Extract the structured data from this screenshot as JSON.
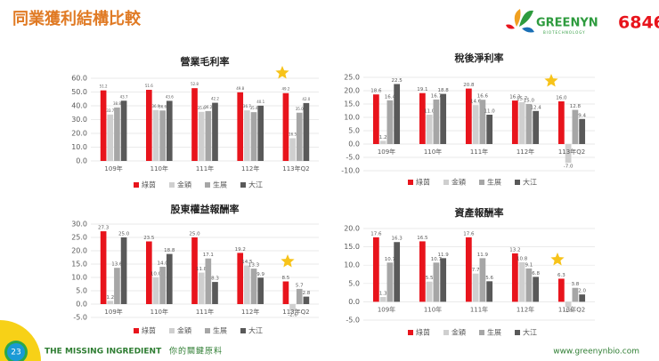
{
  "header": {
    "title": "同業獲利結構比較",
    "logo": "GREENYN",
    "logo_sub": "BIOTECHNOLOGY",
    "code": "6846"
  },
  "footer": {
    "page": "23",
    "slogan": "THE MISSING INGREDIENT",
    "slogan_zh": "你的關鍵原料",
    "url": "www.greenynbio.com"
  },
  "chart_data": [
    {
      "type": "bar",
      "title": "營業毛利率",
      "categories": [
        "109年",
        "110年",
        "111年",
        "112年",
        "113年Q2"
      ],
      "ylim": [
        0,
        60
      ],
      "yticks": [
        {
          "value": 0,
          "label": "0.0"
        },
        {
          "value": 10,
          "label": "10.0"
        },
        {
          "value": 20,
          "label": "20.0"
        },
        {
          "value": 30,
          "label": "30.0"
        },
        {
          "value": 40,
          "label": "40.0"
        },
        {
          "value": 50,
          "label": "50.0"
        },
        {
          "value": 60,
          "label": "60.0"
        }
      ],
      "grid": true,
      "legend": "bottom",
      "series": [
        {
          "name": "綠茵",
          "color": "#e8141c",
          "values": [
            51.2,
            51.6,
            52.8,
            49.8,
            49.2
          ],
          "value_labels": [
            "51.2",
            "51.6",
            "52.8",
            "49.8",
            "49.2"
          ]
        },
        {
          "name": "金穎",
          "color": "#cfcfcf",
          "values": [
            33.7,
            36.9,
            35.6,
            36.7,
            16.5
          ],
          "value_labels": [
            "33.7",
            "36.9",
            "35.6",
            "36.7",
            "16.5"
          ]
        },
        {
          "name": "生展",
          "color": "#a6a6a6",
          "values": [
            38.8,
            36.6,
            36.2,
            35.4,
            35.0
          ],
          "value_labels": [
            "38.8",
            "36.6",
            "36.2",
            "35.4",
            "35.0"
          ]
        },
        {
          "name": "大江",
          "color": "#595959",
          "values": [
            43.7,
            43.6,
            42.2,
            40.1,
            42.0
          ],
          "value_labels": [
            "43.7",
            "43.6",
            "42.2",
            "40.1",
            "42.0"
          ]
        }
      ]
    },
    {
      "type": "bar",
      "title": "稅後淨利率",
      "categories": [
        "109年",
        "110年",
        "111年",
        "112年",
        "113年Q2"
      ],
      "ylim": [
        -10,
        25
      ],
      "yticks": [
        {
          "value": -10,
          "label": "-10.0"
        },
        {
          "value": -5,
          "label": "-5.0"
        },
        {
          "value": 0,
          "label": "0.0"
        },
        {
          "value": 5,
          "label": "5.0"
        },
        {
          "value": 10,
          "label": "10.0"
        },
        {
          "value": 15,
          "label": "15.0"
        },
        {
          "value": 20,
          "label": "20.0"
        },
        {
          "value": 25,
          "label": "25.0"
        }
      ],
      "grid": true,
      "legend": "bottom",
      "series": [
        {
          "name": "綠茵",
          "color": "#e8141c",
          "values": [
            18.6,
            19.1,
            20.8,
            16.3,
            16.0
          ],
          "value_labels": [
            "18.6",
            "19.1",
            "20.8",
            "16.3",
            "16.0"
          ]
        },
        {
          "name": "金穎",
          "color": "#cfcfcf",
          "values": [
            1.2,
            11.0,
            14.6,
            15.7,
            -7.0
          ],
          "value_labels": [
            "1.2",
            "11.0",
            "14.6",
            "15.7",
            "-7.0"
          ]
        },
        {
          "name": "生展",
          "color": "#a6a6a6",
          "values": [
            16.4,
            16.7,
            16.6,
            15.0,
            12.8
          ],
          "value_labels": [
            "16.4",
            "16.7",
            "16.6",
            "15.0",
            "12.8"
          ]
        },
        {
          "name": "大江",
          "color": "#595959",
          "values": [
            22.5,
            18.8,
            11.0,
            12.4,
            9.4
          ],
          "value_labels": [
            "22.5",
            "18.8",
            "11.0",
            "12.4",
            "9.4"
          ]
        }
      ]
    },
    {
      "type": "bar",
      "title": "股東權益報酬率",
      "categories": [
        "109年",
        "110年",
        "111年",
        "112年",
        "113年Q2"
      ],
      "ylim": [
        -5,
        30
      ],
      "yticks": [
        {
          "value": -5,
          "label": "-5.0"
        },
        {
          "value": 0,
          "label": "0.0"
        },
        {
          "value": 5,
          "label": "5.0"
        },
        {
          "value": 10,
          "label": "10.0"
        },
        {
          "value": 15,
          "label": "15.0"
        },
        {
          "value": 20,
          "label": "20.0"
        },
        {
          "value": 25,
          "label": "25.0"
        },
        {
          "value": 30,
          "label": "30.0"
        }
      ],
      "grid": true,
      "legend": "bottom",
      "series": [
        {
          "name": "綠茵",
          "color": "#e8141c",
          "values": [
            27.3,
            23.5,
            25.0,
            19.2,
            8.5
          ],
          "value_labels": [
            "27.3",
            "23.5",
            "25.0",
            "19.2",
            "8.5"
          ]
        },
        {
          "name": "金穎",
          "color": "#cfcfcf",
          "values": [
            1.2,
            10.0,
            11.8,
            14.5,
            -2.6
          ],
          "value_labels": [
            "1.2",
            "10.0",
            "11.8",
            "14.5",
            "-2.6"
          ]
        },
        {
          "name": "生展",
          "color": "#a6a6a6",
          "values": [
            13.6,
            14.0,
            17.1,
            13.3,
            5.7
          ],
          "value_labels": [
            "13.6",
            "14.0",
            "17.1",
            "13.3",
            "5.7"
          ]
        },
        {
          "name": "大江",
          "color": "#595959",
          "values": [
            25.0,
            18.8,
            8.3,
            9.9,
            2.8
          ],
          "value_labels": [
            "25.0",
            "18.8",
            "8.3",
            "9.9",
            "2.8"
          ]
        }
      ]
    },
    {
      "type": "bar",
      "title": "資產報酬率",
      "categories": [
        "109年",
        "110年",
        "111年",
        "112年",
        "113年Q2"
      ],
      "ylim": [
        -5,
        20
      ],
      "yticks": [
        {
          "value": -5,
          "label": "-5.0"
        },
        {
          "value": 0,
          "label": "0.0"
        },
        {
          "value": 5,
          "label": "5.0"
        },
        {
          "value": 10,
          "label": "10.0"
        },
        {
          "value": 15,
          "label": "15.0"
        },
        {
          "value": 20,
          "label": "20.0"
        }
      ],
      "grid": true,
      "legend": "bottom",
      "series": [
        {
          "name": "綠茵",
          "color": "#e8141c",
          "values": [
            17.6,
            16.5,
            17.6,
            13.2,
            6.3
          ],
          "value_labels": [
            "17.6",
            "16.5",
            "17.6",
            "13.2",
            "6.3"
          ]
        },
        {
          "name": "金穎",
          "color": "#cfcfcf",
          "values": [
            1.3,
            5.5,
            7.7,
            10.8,
            -1.5
          ],
          "value_labels": [
            "1.3",
            "5.5",
            "7.7",
            "10.8",
            "-1.5"
          ]
        },
        {
          "name": "生展",
          "color": "#a6a6a6",
          "values": [
            10.7,
            10.7,
            11.9,
            9.1,
            3.8
          ],
          "value_labels": [
            "10.7",
            "10.7",
            "11.9",
            "9.1",
            "3.8"
          ]
        },
        {
          "name": "大江",
          "color": "#595959",
          "values": [
            16.3,
            11.9,
            5.6,
            6.8,
            2.0
          ],
          "value_labels": [
            "16.3",
            "11.9",
            "5.6",
            "6.8",
            "2.0"
          ]
        }
      ]
    }
  ]
}
